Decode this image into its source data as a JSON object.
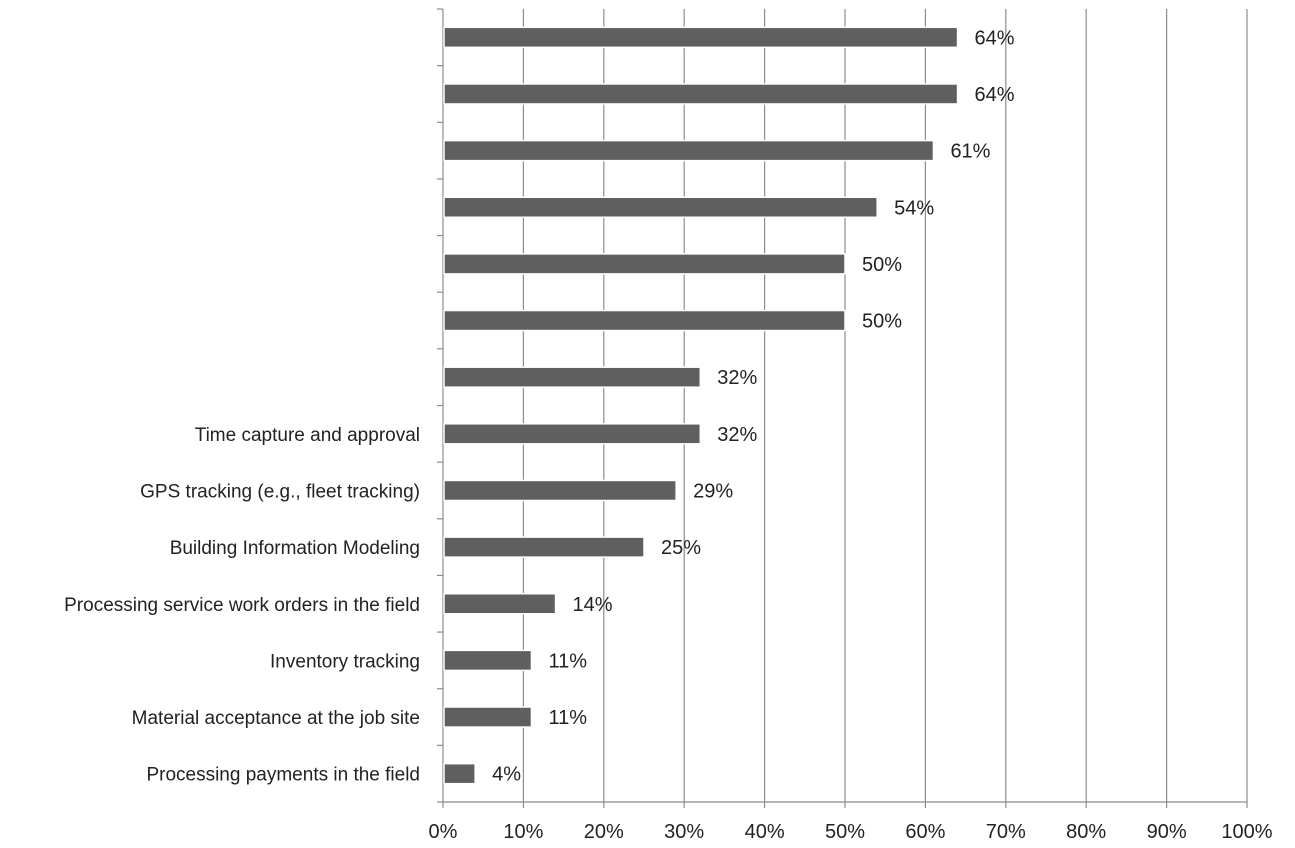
{
  "chart_data": {
    "type": "bar",
    "orientation": "horizontal",
    "categories": [
      "",
      "",
      "",
      "",
      "",
      "",
      "",
      "Time capture and approval",
      "GPS tracking (e.g., fleet tracking)",
      "Building Information Modeling",
      "Processing service work orders in the field",
      "Inventory tracking",
      "Material acceptance at the job site",
      "Processing payments in the field"
    ],
    "values": [
      64,
      64,
      61,
      54,
      50,
      50,
      32,
      32,
      29,
      25,
      14,
      11,
      11,
      4
    ],
    "data_labels": [
      "64%",
      "64%",
      "61%",
      "54%",
      "50%",
      "50%",
      "32%",
      "32%",
      "29%",
      "25%",
      "14%",
      "11%",
      "11%",
      "4%"
    ],
    "title": "",
    "xlabel": "",
    "ylabel": "",
    "xlim": [
      0,
      100
    ],
    "x_ticks": [
      0,
      10,
      20,
      30,
      40,
      50,
      60,
      70,
      80,
      90,
      100
    ],
    "x_tick_labels": [
      "0%",
      "10%",
      "20%",
      "30%",
      "40%",
      "50%",
      "60%",
      "70%",
      "80%",
      "90%",
      "100%"
    ],
    "grid": "vertical",
    "legend": "none",
    "colors": {
      "bar": "#5f5f5f",
      "bar_outline": "#ffffff",
      "gridline": "#8c8c8c",
      "axis": "#8c8c8c",
      "text": "#222222"
    }
  }
}
